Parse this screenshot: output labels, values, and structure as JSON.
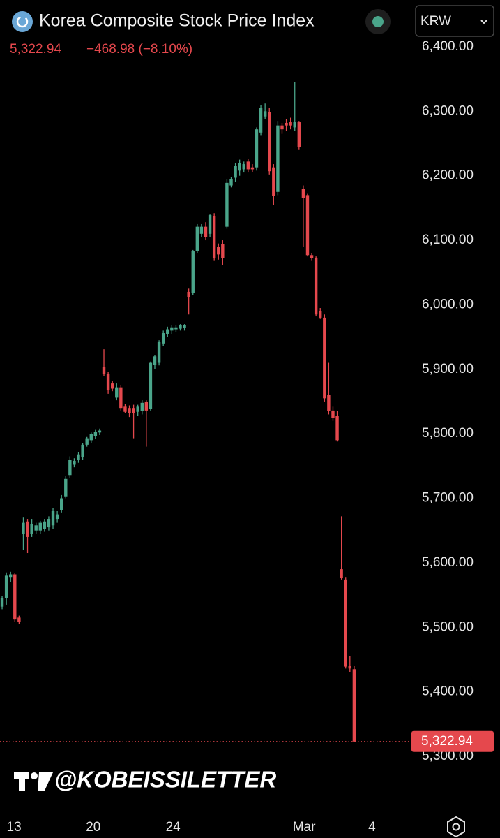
{
  "chart_data": {
    "type": "candlestick",
    "title": "Korea Composite Stock Price Index",
    "price": "5,322.94",
    "change": "−468.98 (−8.10%)",
    "currency": "KRW",
    "watermark": "@KOBEISSILETTER",
    "up_color": "#4aa58a",
    "down_color": "#e5484d",
    "open": [
      5532,
      5545,
      5578,
      5582,
      5515,
      5645,
      5664,
      5645,
      5650,
      5650,
      5652,
      5655,
      5658,
      5668,
      5682,
      5703,
      5736,
      5752,
      5760,
      5764,
      5783,
      5790,
      5796,
      5802,
      5904,
      5893,
      5878,
      5856,
      5872,
      5842,
      5840,
      5840,
      5834,
      5835,
      5850,
      5839,
      5907,
      5910,
      5940,
      5955,
      5960,
      5962,
      5963,
      5964,
      6020,
      6018,
      6083,
      6110,
      6121,
      6110,
      6137,
      6090,
      6094,
      6121,
      6185,
      6197,
      6208,
      6210,
      6222,
      6213,
      6213,
      6267,
      6292,
      6299,
      6213,
      6175,
      6278,
      6282,
      6283,
      6275,
      6283,
      6180,
      6170,
      6077,
      6072,
      5990,
      5980,
      5860,
      5836,
      5828,
      5590,
      5574,
      5440,
      5435
    ],
    "high": [
      5548,
      5585,
      5586,
      5584,
      5518,
      5670,
      5668,
      5668,
      5662,
      5665,
      5668,
      5672,
      5685,
      5680,
      5705,
      5735,
      5765,
      5762,
      5772,
      5785,
      5795,
      5802,
      5806,
      5808,
      5931,
      5896,
      5882,
      5878,
      5876,
      5846,
      5844,
      5845,
      5845,
      5852,
      5852,
      5912,
      5922,
      5945,
      5960,
      5966,
      5968,
      5968,
      5970,
      5970,
      6025,
      6085,
      6125,
      6125,
      6128,
      6140,
      6142,
      6095,
      6100,
      6195,
      6198,
      6220,
      6225,
      6222,
      6226,
      6218,
      6275,
      6310,
      6312,
      6305,
      6218,
      6285,
      6282,
      6288,
      6290,
      6345,
      6285,
      6185,
      6172,
      6080,
      6075,
      5995,
      5985,
      5910,
      5842,
      5835,
      5672,
      5578,
      5455,
      5440
    ],
    "low": [
      5528,
      5535,
      5570,
      5508,
      5505,
      5620,
      5615,
      5640,
      5645,
      5645,
      5648,
      5650,
      5652,
      5662,
      5678,
      5700,
      5732,
      5748,
      5755,
      5760,
      5780,
      5786,
      5792,
      5798,
      5890,
      5862,
      5866,
      5852,
      5836,
      5832,
      5826,
      5793,
      5828,
      5830,
      5780,
      5836,
      5900,
      5906,
      5936,
      5950,
      5955,
      5958,
      5960,
      5960,
      5985,
      6015,
      6080,
      6105,
      6100,
      6105,
      6068,
      6070,
      6062,
      6118,
      6182,
      6190,
      6200,
      6205,
      6205,
      6206,
      6208,
      6262,
      6288,
      6202,
      6155,
      6170,
      6265,
      6270,
      6272,
      6270,
      6240,
      6090,
      6075,
      6068,
      5982,
      5978,
      5850,
      5830,
      5820,
      5788,
      5574,
      5436,
      5430,
      5322.94
    ],
    "close": [
      5545,
      5580,
      5582,
      5512,
      5508,
      5662,
      5640,
      5660,
      5658,
      5662,
      5664,
      5668,
      5680,
      5675,
      5700,
      5730,
      5760,
      5758,
      5768,
      5783,
      5793,
      5800,
      5803,
      5805,
      5893,
      5868,
      5870,
      5872,
      5840,
      5834,
      5832,
      5832,
      5842,
      5848,
      5836,
      5910,
      5920,
      5942,
      5956,
      5962,
      5965,
      5965,
      5968,
      5968,
      6012,
      6083,
      6121,
      6121,
      6105,
      6139,
      6072,
      6078,
      6072,
      6189,
      6195,
      6215,
      6220,
      6218,
      6210,
      6210,
      6272,
      6305,
      6300,
      6207,
      6169,
      6278,
      6272,
      6278,
      6278,
      6283,
      6245,
      6166,
      6077,
      6072,
      5985,
      5980,
      5855,
      5835,
      5825,
      5790,
      5576,
      5439,
      5436,
      5322.94
    ],
    "last_price": {
      "value": 5322.94,
      "label": "5,322.94"
    },
    "xlim": [
      -0.5,
      96.5
    ],
    "xticks": [
      {
        "value": 2.8,
        "label": "13"
      },
      {
        "value": 21.5,
        "label": "20"
      },
      {
        "value": 40.3,
        "label": "24"
      },
      {
        "value": 71.2,
        "label": "Mar"
      },
      {
        "value": 87.2,
        "label": "4"
      }
    ],
    "ylim": [
      5216.6,
      6472.5
    ],
    "yticks": [
      {
        "value": 5300,
        "label": "5,300.00"
      },
      {
        "value": 5400,
        "label": "5,400.00"
      },
      {
        "value": 5500,
        "label": "5,500.00"
      },
      {
        "value": 5600,
        "label": "5,600.00"
      },
      {
        "value": 5700,
        "label": "5,700.00"
      },
      {
        "value": 5800,
        "label": "5,800.00"
      },
      {
        "value": 5900,
        "label": "5,900.00"
      },
      {
        "value": 6000,
        "label": "6,000.00"
      },
      {
        "value": 6100,
        "label": "6,100.00"
      },
      {
        "value": 6200,
        "label": "6,200.00"
      },
      {
        "value": 6300,
        "label": "6,300.00"
      },
      {
        "value": 6400,
        "label": "6,400.00"
      }
    ]
  }
}
